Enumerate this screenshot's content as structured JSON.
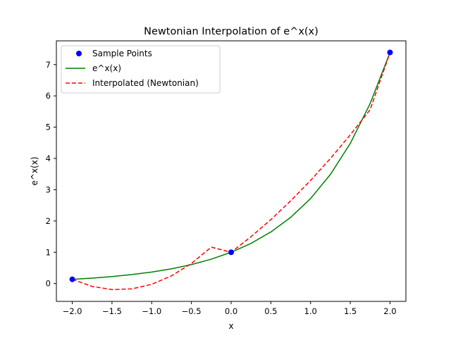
{
  "chart_data": {
    "type": "line",
    "title": "Newtonian Interpolation of e^x(x)",
    "xlabel": "x",
    "ylabel": "e^x(x)",
    "xlim": [
      -2.2,
      2.2
    ],
    "ylim": [
      -0.57,
      7.76
    ],
    "x_ticks": [
      -2.0,
      -1.5,
      -1.0,
      -0.5,
      0.0,
      0.5,
      1.0,
      1.5,
      2.0
    ],
    "x_tick_labels": [
      "−2.0",
      "−1.5",
      "−1.0",
      "−0.5",
      "0.0",
      "0.5",
      "1.0",
      "1.5",
      "2.0"
    ],
    "y_ticks": [
      0,
      1,
      2,
      3,
      4,
      5,
      6,
      7
    ],
    "y_tick_labels": [
      "0",
      "1",
      "2",
      "3",
      "4",
      "5",
      "6",
      "7"
    ],
    "grid": false,
    "legend_position": "upper-left",
    "series": [
      {
        "name": "Sample Points",
        "style": "marker",
        "color": "#0000ff",
        "x": [
          -2.0,
          0.0,
          2.0
        ],
        "y": [
          0.135,
          1.0,
          7.389
        ]
      },
      {
        "name": "e^x(x)",
        "style": "solid",
        "color": "#008000",
        "x": [
          -2.0,
          -1.75,
          -1.5,
          -1.25,
          -1.0,
          -0.75,
          -0.5,
          -0.25,
          0.0,
          0.25,
          0.5,
          0.75,
          1.0,
          1.25,
          1.5,
          1.75,
          2.0
        ],
        "y": [
          0.135,
          0.174,
          0.223,
          0.287,
          0.368,
          0.472,
          0.607,
          0.779,
          1.0,
          1.284,
          1.649,
          2.117,
          2.718,
          3.49,
          4.482,
          5.755,
          7.389
        ]
      },
      {
        "name": "Interpolated (Newtonian)",
        "style": "dashed",
        "color": "#ff0000",
        "x": [
          -2.0,
          -1.75,
          -1.5,
          -1.25,
          -1.0,
          -0.75,
          -0.5,
          -0.25,
          0.0,
          0.25,
          0.5,
          0.75,
          1.0,
          1.25,
          1.5,
          1.75,
          2.0
        ],
        "y": [
          0.135,
          -0.091,
          -0.193,
          -0.17,
          -0.024,
          0.247,
          0.643,
          1.164,
          1.0,
          1.497,
          2.045,
          2.645,
          3.297,
          4.0,
          4.755,
          5.561,
          7.389
        ]
      }
    ]
  }
}
